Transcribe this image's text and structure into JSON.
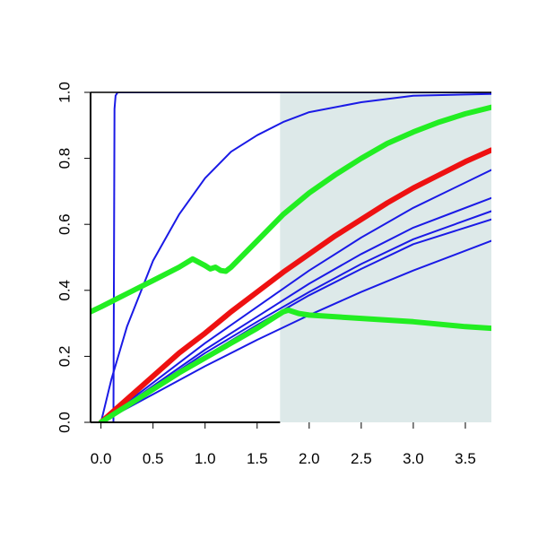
{
  "chart_data": {
    "type": "line",
    "title": "",
    "xlabel": "",
    "ylabel": "",
    "xlim": [
      -0.1,
      3.75
    ],
    "ylim": [
      0,
      1.0
    ],
    "x_ticks": [
      "0.0",
      "0.5",
      "1.0",
      "1.5",
      "2.0",
      "2.5",
      "3.0",
      "3.5"
    ],
    "y_ticks": [
      "0.0",
      "0.2",
      "0.4",
      "0.6",
      "0.8",
      "1.0"
    ],
    "grid": false,
    "legend": "none",
    "shaded_region": {
      "x_start": 1.72,
      "x_end": 3.75,
      "color": "#dde9e9"
    },
    "colors": {
      "blue": "#1a1ae6",
      "red": "#ee1111",
      "green": "#22ee22"
    },
    "series": [
      {
        "color": "blue",
        "width": "thin",
        "x": [
          0.12,
          0.13,
          0.14,
          0.16,
          0.2,
          3.75
        ],
        "y": [
          0.0,
          0.95,
          0.99,
          1.0,
          1.0,
          1.0
        ]
      },
      {
        "color": "blue",
        "width": "thin",
        "x": [
          0.0,
          0.1,
          0.25,
          0.5,
          0.75,
          1.0,
          1.25,
          1.5,
          1.75,
          2.0,
          2.5,
          3.0,
          3.75
        ],
        "y": [
          0.0,
          0.13,
          0.29,
          0.49,
          0.63,
          0.74,
          0.82,
          0.87,
          0.91,
          0.94,
          0.97,
          0.99,
          0.995
        ]
      },
      {
        "color": "blue",
        "width": "thin",
        "x": [
          0.0,
          0.5,
          1.0,
          1.5,
          2.0,
          2.5,
          3.0,
          3.75
        ],
        "y": [
          0.0,
          0.12,
          0.24,
          0.35,
          0.46,
          0.56,
          0.65,
          0.765
        ]
      },
      {
        "color": "blue",
        "width": "thin",
        "x": [
          0.0,
          0.5,
          1.0,
          1.5,
          2.0,
          2.5,
          3.0,
          3.75
        ],
        "y": [
          0.0,
          0.11,
          0.22,
          0.32,
          0.42,
          0.51,
          0.59,
          0.68
        ]
      },
      {
        "color": "blue",
        "width": "thin",
        "x": [
          0.0,
          0.5,
          1.0,
          1.5,
          2.0,
          2.5,
          3.0,
          3.75
        ],
        "y": [
          0.0,
          0.105,
          0.21,
          0.305,
          0.395,
          0.48,
          0.555,
          0.64
        ]
      },
      {
        "color": "blue",
        "width": "thin",
        "x": [
          0.0,
          0.5,
          1.0,
          1.5,
          2.0,
          2.5,
          3.0,
          3.75
        ],
        "y": [
          0.0,
          0.1,
          0.2,
          0.295,
          0.385,
          0.465,
          0.54,
          0.615
        ]
      },
      {
        "color": "blue",
        "width": "thin",
        "x": [
          0.0,
          0.5,
          1.0,
          1.5,
          2.0,
          2.5,
          3.0,
          3.75
        ],
        "y": [
          0.0,
          0.085,
          0.17,
          0.25,
          0.325,
          0.395,
          0.46,
          0.55
        ]
      },
      {
        "color": "red",
        "width": "thick",
        "x": [
          0.0,
          0.25,
          0.5,
          0.75,
          1.0,
          1.25,
          1.5,
          1.75,
          2.0,
          2.25,
          2.5,
          2.75,
          3.0,
          3.25,
          3.5,
          3.75
        ],
        "y": [
          0.0,
          0.07,
          0.14,
          0.21,
          0.27,
          0.335,
          0.395,
          0.455,
          0.51,
          0.565,
          0.615,
          0.665,
          0.71,
          0.75,
          0.79,
          0.825
        ]
      },
      {
        "color": "green",
        "width": "thick",
        "x": [
          -0.1,
          0.0,
          0.25,
          0.5,
          0.75,
          0.88,
          1.0,
          1.05,
          1.1,
          1.15,
          1.2,
          1.25,
          1.5,
          1.75,
          2.0,
          2.25,
          2.5,
          2.75,
          3.0,
          3.25,
          3.5,
          3.75
        ],
        "y": [
          0.335,
          0.35,
          0.39,
          0.43,
          0.47,
          0.495,
          0.475,
          0.465,
          0.47,
          0.46,
          0.458,
          0.47,
          0.55,
          0.63,
          0.695,
          0.75,
          0.8,
          0.845,
          0.88,
          0.91,
          0.935,
          0.955
        ]
      },
      {
        "color": "green",
        "width": "thick",
        "x": [
          0.0,
          0.25,
          0.5,
          0.75,
          1.0,
          1.25,
          1.5,
          1.75,
          1.8,
          1.9,
          2.0,
          2.5,
          3.0,
          3.5,
          3.75
        ],
        "y": [
          0.0,
          0.05,
          0.1,
          0.15,
          0.195,
          0.24,
          0.285,
          0.335,
          0.34,
          0.33,
          0.325,
          0.315,
          0.305,
          0.29,
          0.285
        ]
      }
    ]
  }
}
